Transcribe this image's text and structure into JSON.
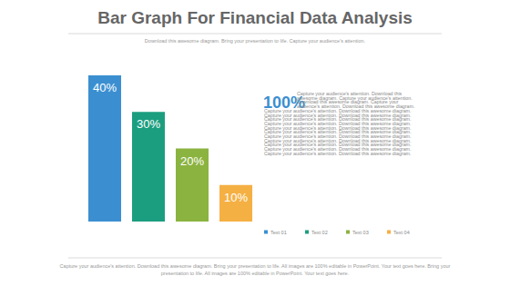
{
  "chart_data": {
    "type": "bar",
    "title": "Bar Graph For Financial Data Analysis",
    "subtitle": "Download this awesome diagram. Bring your presentation to life. Capture your audience's attention.",
    "categories": [
      "Text 01",
      "Text 02",
      "Text 03",
      "Text 04"
    ],
    "values": [
      40,
      30,
      20,
      10
    ],
    "value_labels": [
      "40%",
      "30%",
      "20%",
      "10%"
    ],
    "colors": [
      "#3b8fd1",
      "#1b9e80",
      "#8bb340",
      "#f5b043"
    ],
    "ylim": [
      0,
      40
    ],
    "data_labels": true,
    "tick_labels": false,
    "legend": "bottom",
    "annotations": [
      "100%",
      "Capture your audience's attention. Download this awesome diagram. Capture your audience's attention. Download this awesome diagram. Capture your audience's attention. Download this awesome diagram. Capture your audience's attention. Download this awesome diagram. Capture your audience's attention. Download this awesome diagram. Capture your audience's attention. Download this awesome diagram. Capture your audience's attention. Download this awesome diagram. Capture your audience's attention. Download this awesome diagram. Capture your audience's attention. Download this awesome diagram. Capture your audience's attention. Download this awesome diagram. Capture your audience's attention. Download this awesome diagram. Capture your audience's attention. Download this awesome diagram. Capture your audience's attention. Download this awesome diagram. Capture your audience's attention. Download this awesome diagram.",
      "Capture your audience's attention. Download this awesome diagram. Bring your presentation to life. All images are 100% editable in PowerPoint. Your text goes here. Bring your presentation to life. All images are 100% editable in PowerPoint. Your text goes here."
    ]
  }
}
